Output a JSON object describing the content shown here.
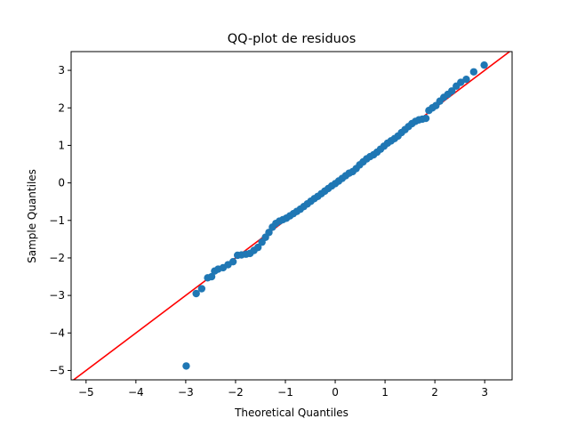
{
  "chart_data": {
    "type": "scatter",
    "title": "QQ-plot de residuos",
    "xlabel": "Theoretical Quantiles",
    "ylabel": "Sample Quantiles",
    "xlim": [
      -5.3,
      3.55
    ],
    "ylim": [
      -5.25,
      3.5
    ],
    "xticks": [
      -5,
      -4,
      -3,
      -2,
      -1,
      0,
      1,
      2,
      3
    ],
    "yticks": [
      -5,
      -4,
      -3,
      -2,
      -1,
      0,
      1,
      2,
      3
    ],
    "grid": false,
    "point_color": "#1f77b4",
    "line_color": "#ff0000",
    "reference_line": {
      "slope": 1,
      "intercept": 0
    },
    "series": [
      {
        "points": [
          [
            -2.99,
            -4.88
          ],
          [
            -2.79,
            -2.95
          ],
          [
            -2.68,
            -2.82
          ],
          [
            -2.56,
            -2.53
          ],
          [
            -2.48,
            -2.5
          ],
          [
            -2.42,
            -2.35
          ],
          [
            -2.35,
            -2.3
          ],
          [
            -2.25,
            -2.26
          ],
          [
            -2.15,
            -2.18
          ],
          [
            -2.05,
            -2.1
          ],
          [
            -1.96,
            -1.93
          ],
          [
            -1.88,
            -1.92
          ],
          [
            -1.79,
            -1.9
          ],
          [
            -1.71,
            -1.88
          ],
          [
            -1.63,
            -1.8
          ],
          [
            -1.55,
            -1.72
          ],
          [
            -1.47,
            -1.58
          ],
          [
            -1.4,
            -1.45
          ],
          [
            -1.33,
            -1.32
          ],
          [
            -1.26,
            -1.18
          ],
          [
            -1.19,
            -1.08
          ],
          [
            -1.12,
            -1.02
          ],
          [
            -1.05,
            -0.98
          ],
          [
            -0.98,
            -0.94
          ],
          [
            -0.91,
            -0.88
          ],
          [
            -0.84,
            -0.82
          ],
          [
            -0.77,
            -0.76
          ],
          [
            -0.7,
            -0.7
          ],
          [
            -0.63,
            -0.63
          ],
          [
            -0.56,
            -0.56
          ],
          [
            -0.49,
            -0.49
          ],
          [
            -0.42,
            -0.42
          ],
          [
            -0.35,
            -0.36
          ],
          [
            -0.28,
            -0.29
          ],
          [
            -0.21,
            -0.22
          ],
          [
            -0.14,
            -0.15
          ],
          [
            -0.07,
            -0.08
          ],
          [
            0.0,
            -0.02
          ],
          [
            0.07,
            0.05
          ],
          [
            0.14,
            0.12
          ],
          [
            0.21,
            0.19
          ],
          [
            0.28,
            0.26
          ],
          [
            0.35,
            0.3
          ],
          [
            0.42,
            0.38
          ],
          [
            0.49,
            0.48
          ],
          [
            0.56,
            0.56
          ],
          [
            0.63,
            0.64
          ],
          [
            0.7,
            0.7
          ],
          [
            0.77,
            0.75
          ],
          [
            0.84,
            0.82
          ],
          [
            0.91,
            0.9
          ],
          [
            0.98,
            0.98
          ],
          [
            1.05,
            1.06
          ],
          [
            1.12,
            1.12
          ],
          [
            1.19,
            1.18
          ],
          [
            1.26,
            1.25
          ],
          [
            1.33,
            1.34
          ],
          [
            1.4,
            1.42
          ],
          [
            1.47,
            1.5
          ],
          [
            1.54,
            1.58
          ],
          [
            1.61,
            1.64
          ],
          [
            1.68,
            1.68
          ],
          [
            1.75,
            1.7
          ],
          [
            1.82,
            1.72
          ],
          [
            1.88,
            1.93
          ],
          [
            1.95,
            2.0
          ],
          [
            2.02,
            2.06
          ],
          [
            2.1,
            2.18
          ],
          [
            2.18,
            2.28
          ],
          [
            2.26,
            2.36
          ],
          [
            2.34,
            2.45
          ],
          [
            2.43,
            2.58
          ],
          [
            2.52,
            2.68
          ],
          [
            2.63,
            2.76
          ],
          [
            2.78,
            2.96
          ],
          [
            2.99,
            3.14
          ]
        ]
      }
    ]
  }
}
